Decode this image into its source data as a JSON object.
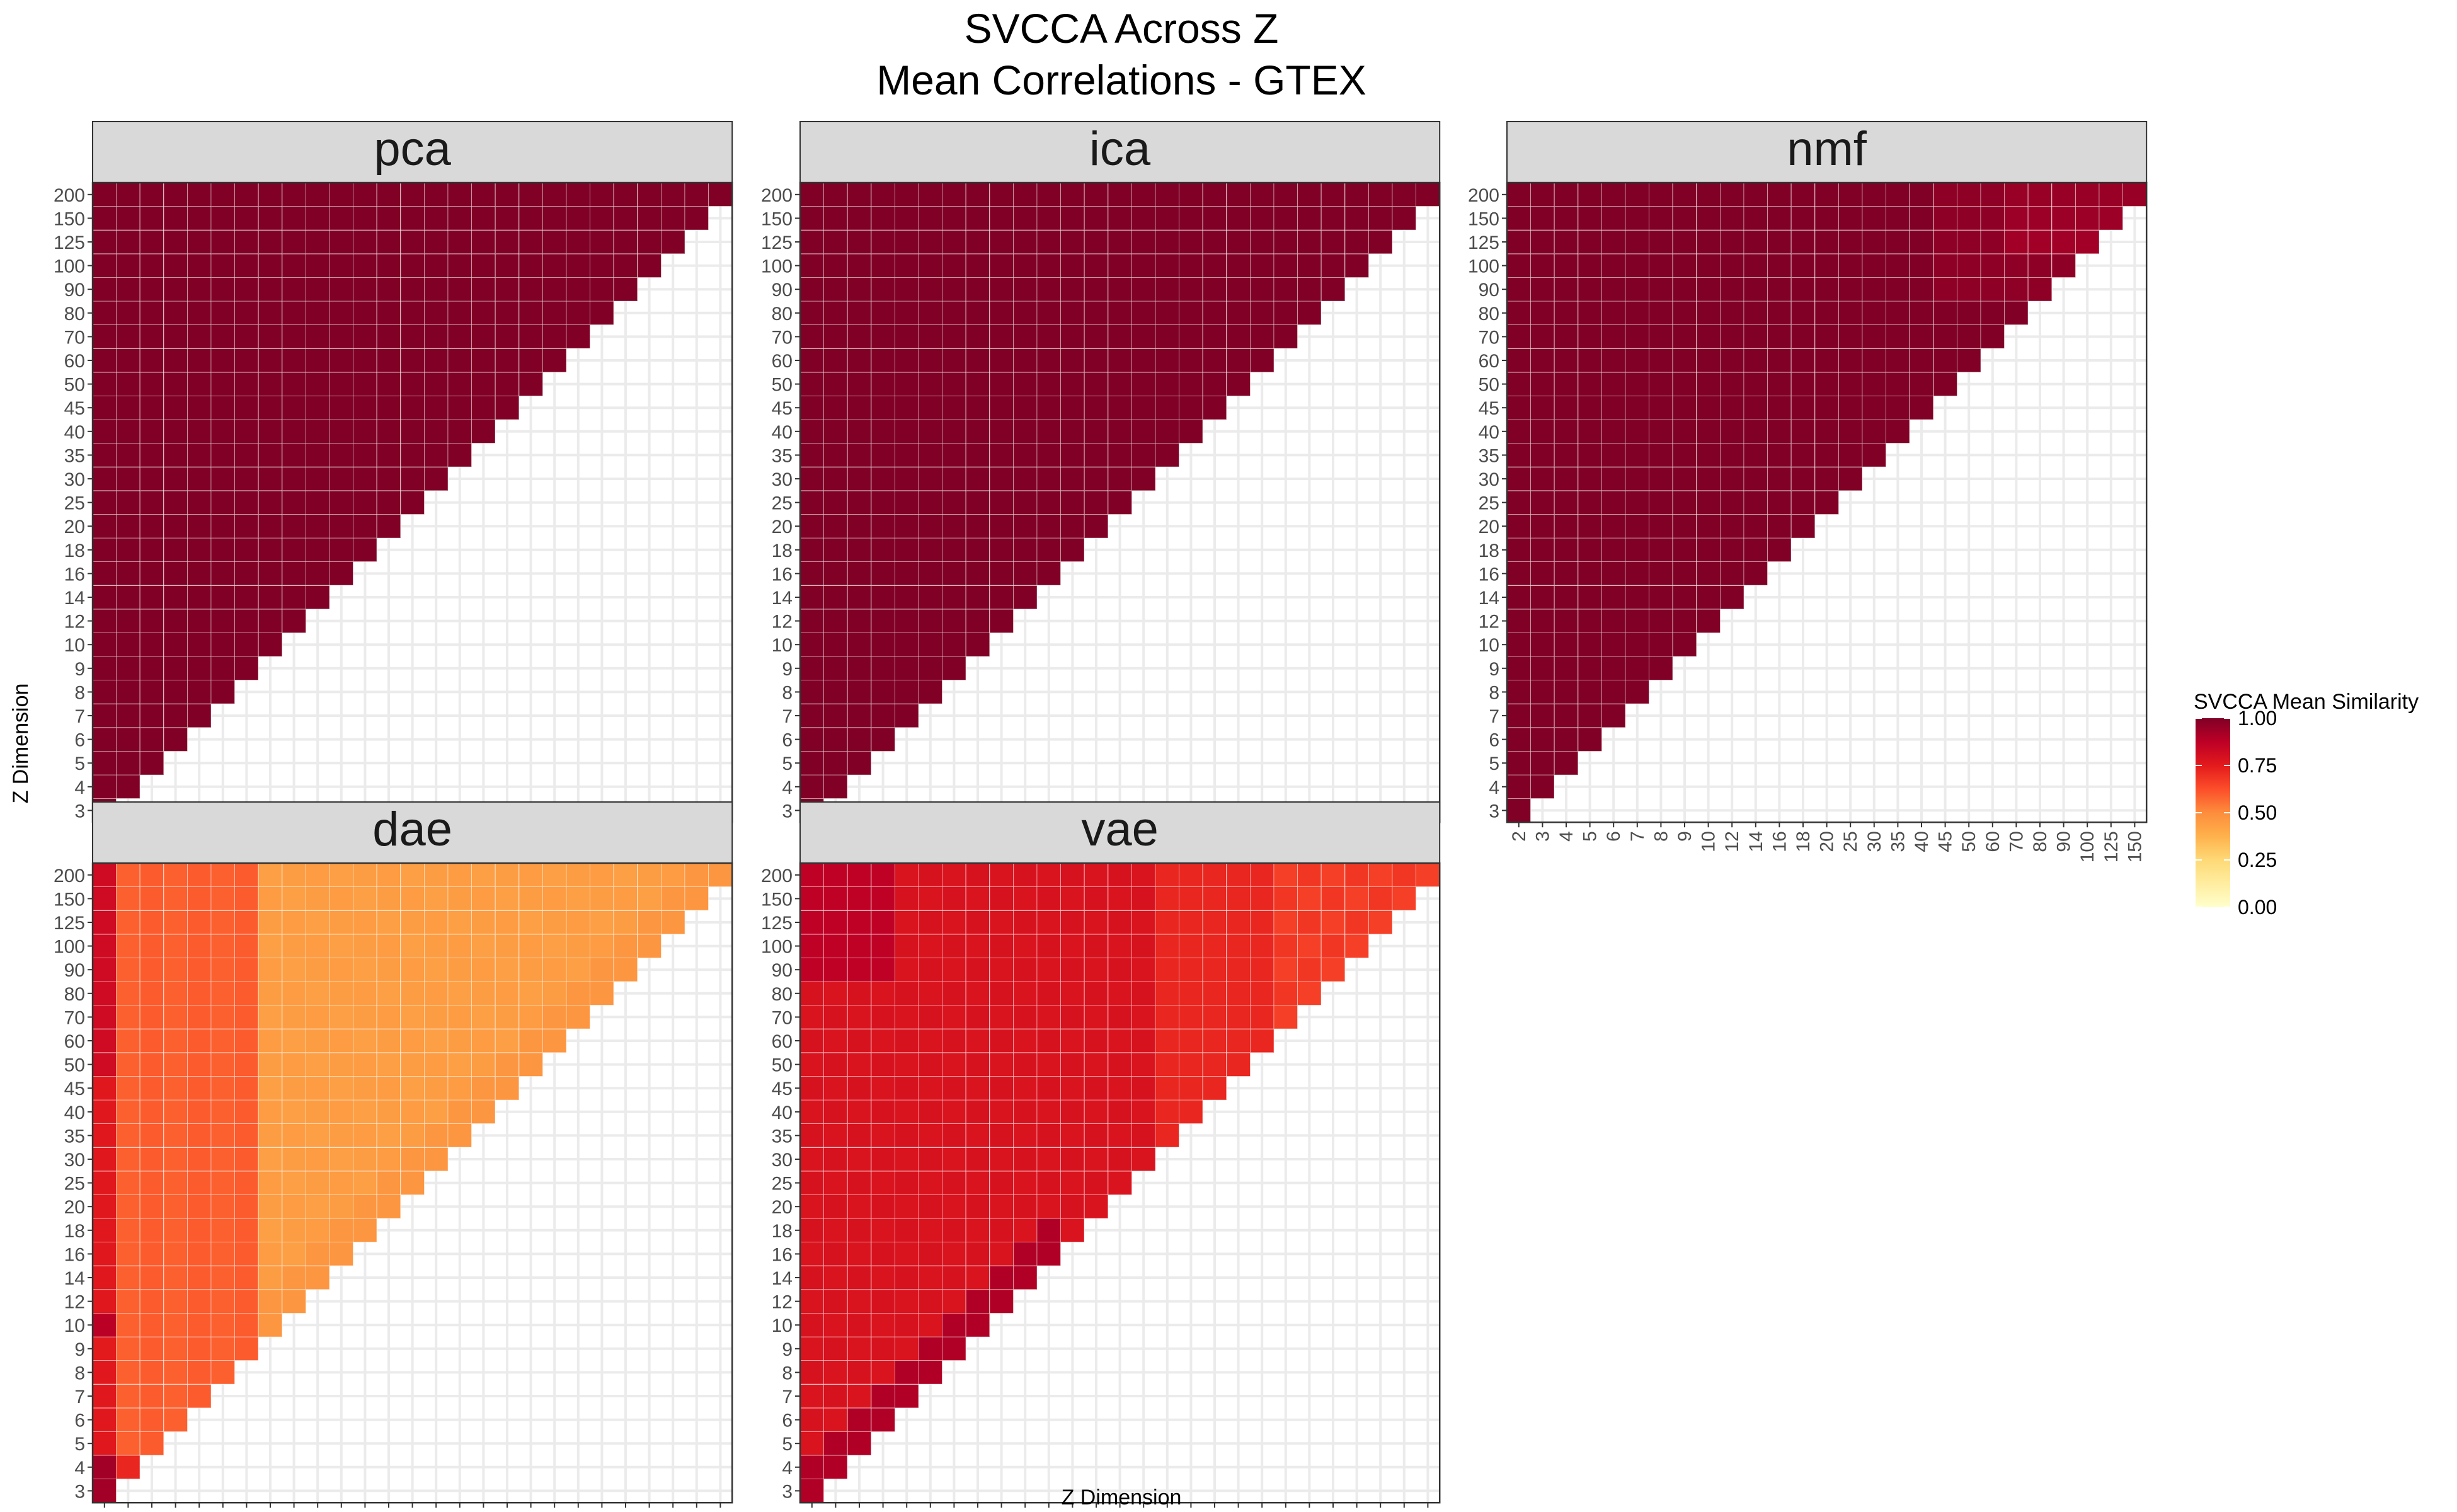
{
  "chart_data": {
    "type": "heatmap",
    "title": "SVCCA Across Z",
    "subtitle": "Mean Correlations - GTEX",
    "xlabel": "Z Dimension",
    "ylabel": "Z Dimension",
    "x_ticks": [
      "2",
      "3",
      "4",
      "5",
      "6",
      "7",
      "8",
      "9",
      "10",
      "12",
      "14",
      "16",
      "18",
      "20",
      "25",
      "30",
      "35",
      "40",
      "45",
      "50",
      "60",
      "70",
      "80",
      "90",
      "100",
      "125",
      "150"
    ],
    "y_ticks": [
      "3",
      "4",
      "5",
      "6",
      "7",
      "8",
      "9",
      "10",
      "12",
      "14",
      "16",
      "18",
      "20",
      "25",
      "30",
      "35",
      "40",
      "45",
      "50",
      "60",
      "70",
      "80",
      "90",
      "100",
      "125",
      "150",
      "200"
    ],
    "legend": {
      "title": "SVCCA Mean Similarity",
      "breaks": [
        "1.00",
        "0.75",
        "0.50",
        "0.25",
        "0.00"
      ],
      "range": [
        0,
        1
      ],
      "colors": [
        "#ffffcc",
        "#ffeda0",
        "#fed976",
        "#feb24c",
        "#fd8d3c",
        "#fc4e2a",
        "#e31a1c",
        "#bd0026",
        "#800026"
      ],
      "placement": "right"
    },
    "panel_background": "#ffffff",
    "grid_color": "#ebebeb",
    "strip_color": "#d9d9d9",
    "panels": [
      {
        "name": "pca",
        "note": "mean similarity 1.00 across all lower-triangle pairs",
        "base": 1.0
      },
      {
        "name": "ica",
        "note": "mean similarity 1.00 across all lower-triangle pairs",
        "base": 1.0
      },
      {
        "name": "nmf",
        "note": "near 1.00; slightly lower (~0.93-0.95) for x in 60-125 with y 150-200",
        "base": 1.0
      },
      {
        "name": "dae",
        "note": "x=2 column ~0.7-0.9, x=3-8 ~0.55-0.65, x>=9 ~0.42-0.5",
        "base": 0.5
      },
      {
        "name": "vae",
        "note": "~0.75-0.85 overall, ~0.88 near diagonal at small z, ~0.65 for large x",
        "base": 0.78
      }
    ]
  }
}
